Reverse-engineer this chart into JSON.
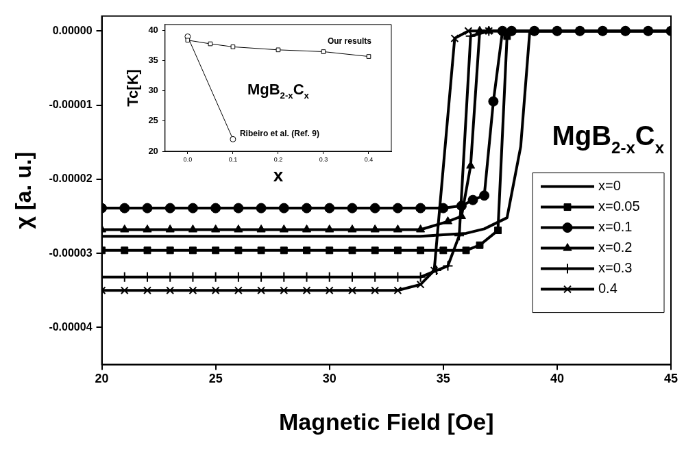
{
  "chart_data": [
    {
      "type": "line",
      "xlabel": "Magnetic Field [Oe]",
      "ylabel": "χ [a. u.]",
      "xlim": [
        20,
        45
      ],
      "xticks": [
        20,
        25,
        30,
        35,
        40,
        45
      ],
      "ylim": [
        -4.5e-05,
        2e-06
      ],
      "yticks": [
        {
          "value": 0,
          "label": "0.00000"
        },
        {
          "value": -1e-05,
          "label": "-0.00001"
        },
        {
          "value": -2e-05,
          "label": "-0.00002"
        },
        {
          "value": -3e-05,
          "label": "-0.00003"
        },
        {
          "value": -4e-05,
          "label": "-0.00004"
        }
      ],
      "legend": "right",
      "line_style": "solid",
      "annotations": [
        "MgB$_{2-x}$C$_{x}$"
      ],
      "series": [
        {
          "name": "x=0",
          "color": "#000000",
          "marker": "none",
          "x": [
            20,
            21,
            22,
            23,
            24,
            25,
            26,
            27,
            28,
            29,
            30,
            31,
            32,
            33,
            34,
            35,
            36,
            36.8,
            37.8,
            38.4,
            38.8,
            40,
            41,
            42,
            43,
            44,
            45
          ],
          "values": [
            -2.77e-05,
            -2.77e-05,
            -2.77e-05,
            -2.77e-05,
            -2.77e-05,
            -2.77e-05,
            -2.77e-05,
            -2.77e-05,
            -2.77e-05,
            -2.77e-05,
            -2.77e-05,
            -2.77e-05,
            -2.77e-05,
            -2.77e-05,
            -2.77e-05,
            -2.75e-05,
            -2.73e-05,
            -2.67e-05,
            -2.52e-05,
            -1.56e-05,
            0,
            0,
            0,
            0,
            0,
            0,
            0
          ]
        },
        {
          "name": "x=0.05",
          "color": "#000000",
          "marker": "square",
          "x": [
            20,
            21,
            22,
            23,
            24,
            25,
            26,
            27,
            28,
            29,
            30,
            31,
            32,
            33,
            34,
            35,
            36,
            36.6,
            37.4,
            37.8,
            38,
            39,
            40,
            41,
            42,
            43,
            44,
            45
          ],
          "values": [
            -2.96e-05,
            -2.96e-05,
            -2.96e-05,
            -2.96e-05,
            -2.96e-05,
            -2.96e-05,
            -2.96e-05,
            -2.96e-05,
            -2.96e-05,
            -2.96e-05,
            -2.96e-05,
            -2.96e-05,
            -2.96e-05,
            -2.96e-05,
            -2.96e-05,
            -2.96e-05,
            -2.96e-05,
            -2.89e-05,
            -2.69e-05,
            -7e-07,
            0,
            0,
            0,
            0,
            0,
            0,
            0,
            0
          ]
        },
        {
          "name": "x=0.1",
          "color": "#000000",
          "marker": "circle",
          "x": [
            20,
            21,
            22,
            23,
            24,
            25,
            26,
            27,
            28,
            29,
            30,
            31,
            32,
            33,
            34,
            35,
            35.8,
            36.3,
            36.8,
            37.2,
            37.6,
            38,
            39,
            40,
            41,
            42,
            43,
            44,
            45
          ],
          "values": [
            -2.39e-05,
            -2.39e-05,
            -2.39e-05,
            -2.39e-05,
            -2.39e-05,
            -2.39e-05,
            -2.39e-05,
            -2.39e-05,
            -2.39e-05,
            -2.39e-05,
            -2.39e-05,
            -2.39e-05,
            -2.39e-05,
            -2.39e-05,
            -2.39e-05,
            -2.39e-05,
            -2.36e-05,
            -2.28e-05,
            -2.22e-05,
            -9.5e-06,
            0,
            0,
            0,
            0,
            0,
            0,
            0,
            0,
            0
          ]
        },
        {
          "name": "x=0.2",
          "color": "#000000",
          "marker": "triangle",
          "x": [
            20,
            21,
            22,
            23,
            24,
            25,
            26,
            27,
            28,
            29,
            30,
            31,
            32,
            33,
            34,
            35.2,
            35.8,
            36.2,
            36.6,
            37,
            38,
            39,
            40,
            41,
            42,
            43,
            44,
            45
          ],
          "values": [
            -2.68e-05,
            -2.68e-05,
            -2.68e-05,
            -2.68e-05,
            -2.68e-05,
            -2.68e-05,
            -2.68e-05,
            -2.68e-05,
            -2.68e-05,
            -2.68e-05,
            -2.68e-05,
            -2.68e-05,
            -2.68e-05,
            -2.68e-05,
            -2.68e-05,
            -2.57e-05,
            -2.5e-05,
            -1.82e-05,
            0,
            0,
            0,
            0,
            0,
            0,
            0,
            0,
            0,
            0
          ]
        },
        {
          "name": "x=0.3",
          "color": "#000000",
          "marker": "plus",
          "x": [
            20,
            21,
            22,
            23,
            24,
            25,
            26,
            27,
            28,
            29,
            30,
            31,
            32,
            33,
            34,
            34.7,
            35.2,
            35.7,
            36.2,
            37,
            38,
            39,
            40,
            41,
            42,
            43,
            44,
            45
          ],
          "values": [
            -3.32e-05,
            -3.32e-05,
            -3.32e-05,
            -3.32e-05,
            -3.32e-05,
            -3.32e-05,
            -3.32e-05,
            -3.32e-05,
            -3.32e-05,
            -3.32e-05,
            -3.32e-05,
            -3.32e-05,
            -3.32e-05,
            -3.32e-05,
            -3.32e-05,
            -3.23e-05,
            -3.17e-05,
            -2.76e-05,
            -7e-07,
            0,
            0,
            0,
            0,
            0,
            0,
            0,
            0,
            0
          ]
        },
        {
          "name": "0.4",
          "color": "#000000",
          "marker": "cross",
          "x": [
            20,
            21,
            22,
            23,
            24,
            25,
            26,
            27,
            28,
            29,
            30,
            31,
            32,
            33,
            34,
            34.6,
            35.5,
            36.1,
            37,
            38,
            39,
            40,
            41,
            42,
            43,
            44,
            45
          ],
          "values": [
            -3.5e-05,
            -3.5e-05,
            -3.5e-05,
            -3.5e-05,
            -3.5e-05,
            -3.5e-05,
            -3.5e-05,
            -3.5e-05,
            -3.5e-05,
            -3.5e-05,
            -3.5e-05,
            -3.5e-05,
            -3.5e-05,
            -3.5e-05,
            -3.42e-05,
            -3.23e-05,
            -1e-06,
            0,
            0,
            0,
            0,
            0,
            0,
            0,
            0,
            0,
            0
          ]
        }
      ]
    },
    {
      "type": "line",
      "xlabel": "x",
      "ylabel": "Tc[K]",
      "xlim": [
        -0.05,
        0.45
      ],
      "xticks": [
        {
          "value": 0,
          "label": "0.0"
        },
        {
          "value": 0.1,
          "label": "0.1"
        },
        {
          "value": 0.2,
          "label": "0.2"
        },
        {
          "value": 0.3,
          "label": "0.3"
        },
        {
          "value": 0.4,
          "label": "0.4"
        }
      ],
      "ylim": [
        20,
        41
      ],
      "yticks": [
        20,
        25,
        30,
        35,
        40
      ],
      "line_style": "solid",
      "annotations": [
        "MgB$_{2-x}$C$_{x}$"
      ],
      "series": [
        {
          "name": "Our results",
          "color": "#000000",
          "marker": "square",
          "x": [
            0,
            0.05,
            0.1,
            0.2,
            0.3,
            0.4
          ],
          "values": [
            38.4,
            37.8,
            37.3,
            36.8,
            36.5,
            35.7
          ]
        },
        {
          "name": "Ribeiro et al. (Ref. 9)",
          "color": "#000000",
          "marker": "circle",
          "x": [
            0,
            0.1
          ],
          "values": [
            39.0,
            22.0
          ]
        }
      ]
    }
  ]
}
